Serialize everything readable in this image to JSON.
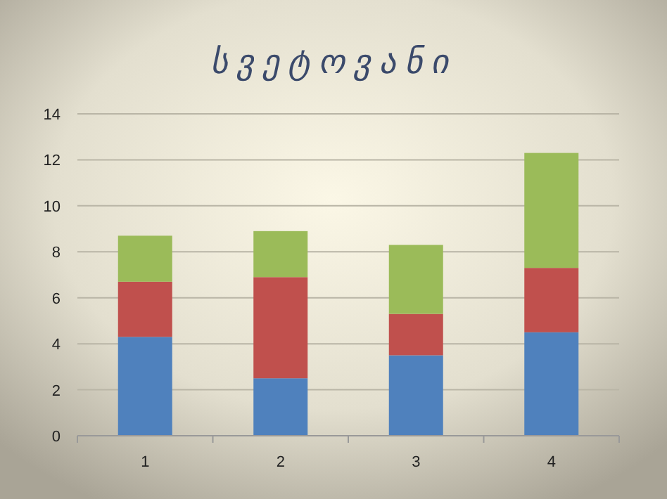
{
  "chart_data": {
    "type": "bar",
    "title": "სვეტოვანი",
    "categories": [
      "1",
      "2",
      "3",
      "4"
    ],
    "stacked": true,
    "series": [
      {
        "color": "#4f81bd",
        "values": [
          4.3,
          2.5,
          3.5,
          4.5
        ]
      },
      {
        "color": "#c0504d",
        "values": [
          2.4,
          4.4,
          1.8,
          2.8
        ]
      },
      {
        "color": "#9bbb59",
        "values": [
          2,
          2,
          3,
          5
        ]
      }
    ],
    "ylim": [
      0,
      14
    ],
    "yticks": [
      0,
      2,
      4,
      6,
      8,
      10,
      12,
      14
    ],
    "grid": "y"
  }
}
